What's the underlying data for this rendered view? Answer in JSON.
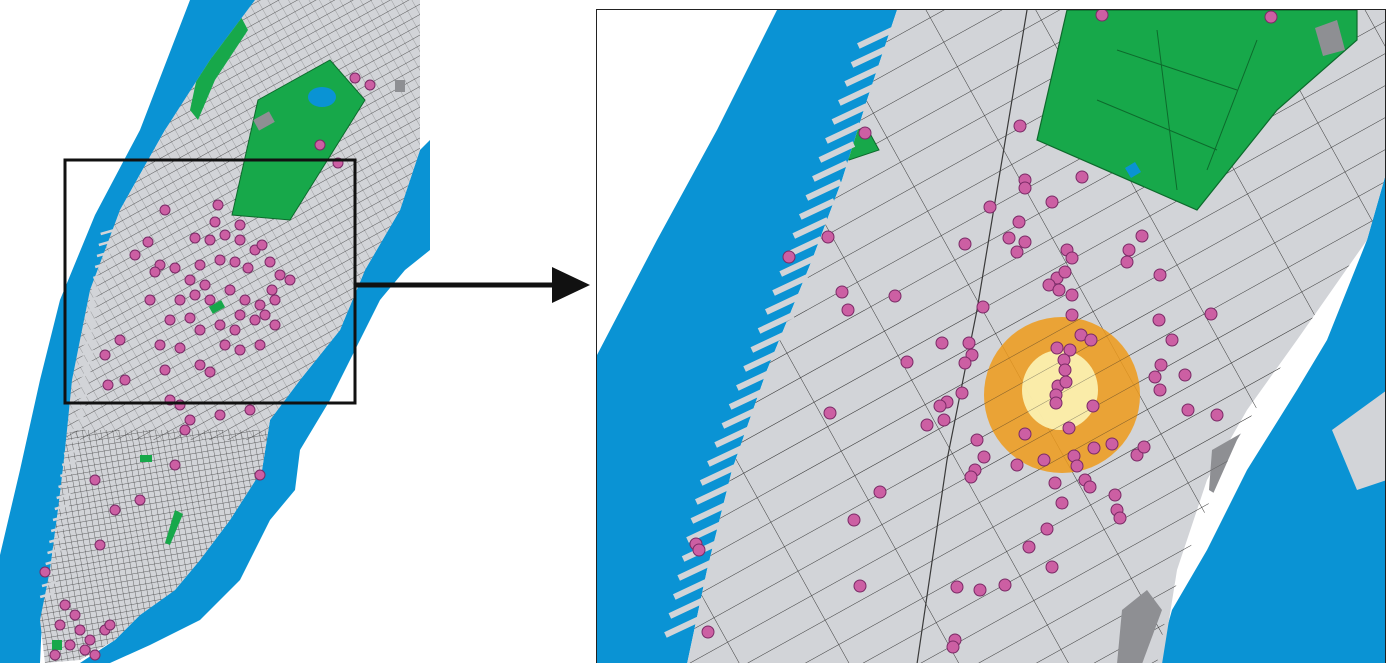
{
  "colors": {
    "water": "#0a93d4",
    "land": "#d2d4d8",
    "street": "#3a3a3a",
    "park": "#17a84a",
    "park_outline": "#0d6a2c",
    "marker_fill": "#cc5fa3",
    "marker_stroke": "#7a2a66",
    "buffer_outer": "#ef9a1a",
    "buffer_inner": "#fbf2b3",
    "building": "#8e8f93",
    "frame": "#111111",
    "background": "#ffffff"
  },
  "icons": {
    "zoom_arrow": "arrow-right-icon",
    "marker": "location-dot-icon"
  },
  "overview": {
    "description_layer_names": [
      "water",
      "land",
      "streets",
      "parks",
      "locations",
      "zoom-frame"
    ]
  },
  "detail": {
    "buffer_rings": 2
  }
}
